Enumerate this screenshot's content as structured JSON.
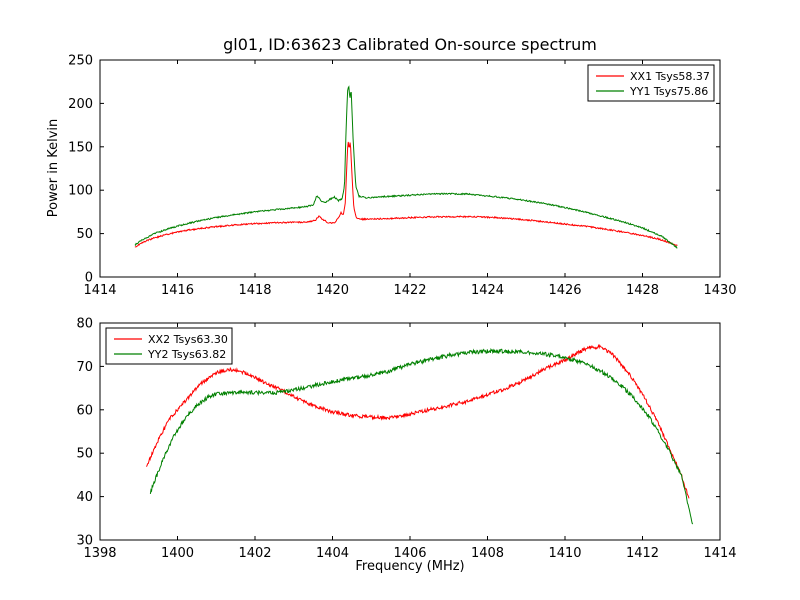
{
  "figure": {
    "title": "gl01, ID:63623 Calibrated On-source spectrum"
  },
  "chart_data": [
    {
      "type": "line",
      "title": "",
      "xlabel": "",
      "ylabel": "Power in Kelvin",
      "xlim": [
        1414,
        1430
      ],
      "ylim": [
        0,
        250
      ],
      "xticks": [
        1414,
        1416,
        1418,
        1420,
        1422,
        1424,
        1426,
        1428,
        1430
      ],
      "yticks": [
        0,
        50,
        100,
        150,
        200,
        250
      ],
      "grid": false,
      "legend_position": "upper right",
      "series": [
        {
          "name": "XX1 Tsys58.37",
          "color": "#ff0000",
          "noise": 0.8,
          "points": [
            [
              1414.9,
              34
            ],
            [
              1415.1,
              40
            ],
            [
              1415.4,
              45
            ],
            [
              1415.8,
              50
            ],
            [
              1416.2,
              53.5
            ],
            [
              1416.6,
              56
            ],
            [
              1417.0,
              58
            ],
            [
              1417.5,
              60
            ],
            [
              1418.0,
              61.5
            ],
            [
              1418.5,
              62.5
            ],
            [
              1419.0,
              63
            ],
            [
              1419.4,
              63.5
            ],
            [
              1419.55,
              65
            ],
            [
              1419.65,
              70
            ],
            [
              1419.75,
              66
            ],
            [
              1419.9,
              62.5
            ],
            [
              1420.05,
              62.5
            ],
            [
              1420.15,
              68
            ],
            [
              1420.22,
              74
            ],
            [
              1420.28,
              71
            ],
            [
              1420.33,
              85
            ],
            [
              1420.37,
              130
            ],
            [
              1420.4,
              158
            ],
            [
              1420.43,
              148
            ],
            [
              1420.46,
              156
            ],
            [
              1420.5,
              120
            ],
            [
              1420.55,
              80
            ],
            [
              1420.62,
              68
            ],
            [
              1420.8,
              66.5
            ],
            [
              1421.2,
              67
            ],
            [
              1421.8,
              68
            ],
            [
              1422.4,
              69
            ],
            [
              1423.0,
              69.5
            ],
            [
              1423.6,
              69.5
            ],
            [
              1424.2,
              68.5
            ],
            [
              1424.8,
              66.5
            ],
            [
              1425.4,
              64
            ],
            [
              1426.0,
              61
            ],
            [
              1426.6,
              58
            ],
            [
              1427.2,
              54
            ],
            [
              1427.8,
              49.5
            ],
            [
              1428.4,
              44
            ],
            [
              1428.9,
              36.5
            ]
          ]
        },
        {
          "name": "YY1 Tsys75.86",
          "color": "#008000",
          "noise": 0.8,
          "points": [
            [
              1414.9,
              37
            ],
            [
              1415.1,
              43
            ],
            [
              1415.4,
              50
            ],
            [
              1415.8,
              56
            ],
            [
              1416.2,
              61
            ],
            [
              1416.6,
              65
            ],
            [
              1417.0,
              68.5
            ],
            [
              1417.5,
              72
            ],
            [
              1418.0,
              75
            ],
            [
              1418.5,
              77.5
            ],
            [
              1419.0,
              79.5
            ],
            [
              1419.3,
              81
            ],
            [
              1419.5,
              83
            ],
            [
              1419.6,
              94
            ],
            [
              1419.7,
              88
            ],
            [
              1419.8,
              85.5
            ],
            [
              1419.95,
              90
            ],
            [
              1420.05,
              92
            ],
            [
              1420.15,
              88
            ],
            [
              1420.25,
              90
            ],
            [
              1420.31,
              105
            ],
            [
              1420.35,
              170
            ],
            [
              1420.39,
              215
            ],
            [
              1420.42,
              220
            ],
            [
              1420.45,
              205
            ],
            [
              1420.48,
              218
            ],
            [
              1420.53,
              160
            ],
            [
              1420.6,
              105
            ],
            [
              1420.68,
              93
            ],
            [
              1420.9,
              91
            ],
            [
              1421.3,
              92.5
            ],
            [
              1421.9,
              94
            ],
            [
              1422.5,
              95.5
            ],
            [
              1423.0,
              96
            ],
            [
              1423.5,
              95.5
            ],
            [
              1424.0,
              93.5
            ],
            [
              1424.5,
              91
            ],
            [
              1425.0,
              88
            ],
            [
              1425.5,
              84.5
            ],
            [
              1426.0,
              80
            ],
            [
              1426.5,
              75
            ],
            [
              1427.0,
              69.5
            ],
            [
              1427.5,
              63.5
            ],
            [
              1428.0,
              56.5
            ],
            [
              1428.5,
              47
            ],
            [
              1428.9,
              33.5
            ]
          ]
        }
      ]
    },
    {
      "type": "line",
      "title": "",
      "xlabel": "Frequency (MHz)",
      "ylabel": "",
      "xlim": [
        1398,
        1414
      ],
      "ylim": [
        30,
        80
      ],
      "xticks": [
        1398,
        1400,
        1402,
        1404,
        1406,
        1408,
        1410,
        1412,
        1414
      ],
      "yticks": [
        30,
        40,
        50,
        60,
        70,
        80
      ],
      "grid": false,
      "legend_position": "upper left",
      "series": [
        {
          "name": "XX2 Tsys63.30",
          "color": "#ff0000",
          "noise": 0.4,
          "points": [
            [
              1399.2,
              47
            ],
            [
              1399.5,
              53
            ],
            [
              1399.8,
              58
            ],
            [
              1400.2,
              62
            ],
            [
              1400.6,
              66
            ],
            [
              1401.0,
              68.5
            ],
            [
              1401.3,
              69.3
            ],
            [
              1401.6,
              69
            ],
            [
              1402.0,
              67.5
            ],
            [
              1402.3,
              66
            ],
            [
              1402.7,
              64.5
            ],
            [
              1403.0,
              63
            ],
            [
              1403.5,
              61
            ],
            [
              1404.0,
              59.5
            ],
            [
              1404.5,
              58.7
            ],
            [
              1405.0,
              58.3
            ],
            [
              1405.5,
              58.2
            ],
            [
              1406.0,
              59
            ],
            [
              1406.5,
              60
            ],
            [
              1407.0,
              61
            ],
            [
              1407.5,
              62
            ],
            [
              1408.0,
              63.5
            ],
            [
              1408.5,
              65
            ],
            [
              1409.0,
              67
            ],
            [
              1409.5,
              69.5
            ],
            [
              1410.0,
              71.5
            ],
            [
              1410.3,
              73
            ],
            [
              1410.6,
              74.3
            ],
            [
              1410.9,
              74.5
            ],
            [
              1411.2,
              73
            ],
            [
              1411.5,
              70
            ],
            [
              1411.8,
              66.5
            ],
            [
              1412.1,
              62
            ],
            [
              1412.4,
              57
            ],
            [
              1412.7,
              51
            ],
            [
              1413.0,
              45
            ],
            [
              1413.2,
              39.5
            ]
          ]
        },
        {
          "name": "YY2 Tsys63.82",
          "color": "#008000",
          "noise": 0.45,
          "points": [
            [
              1399.3,
              41
            ],
            [
              1399.6,
              48
            ],
            [
              1399.9,
              54
            ],
            [
              1400.2,
              58
            ],
            [
              1400.5,
              61
            ],
            [
              1400.8,
              63
            ],
            [
              1401.1,
              63.8
            ],
            [
              1401.5,
              64
            ],
            [
              1402.0,
              64
            ],
            [
              1402.3,
              63.8
            ],
            [
              1402.6,
              64
            ],
            [
              1403.0,
              64.5
            ],
            [
              1403.5,
              65.5
            ],
            [
              1404.0,
              66.5
            ],
            [
              1404.5,
              67.2
            ],
            [
              1405.0,
              68
            ],
            [
              1405.5,
              69
            ],
            [
              1406.0,
              70.5
            ],
            [
              1406.5,
              71.5
            ],
            [
              1407.0,
              72.5
            ],
            [
              1407.5,
              73.2
            ],
            [
              1408.0,
              73.5
            ],
            [
              1408.5,
              73.5
            ],
            [
              1409.0,
              73.2
            ],
            [
              1409.5,
              72.8
            ],
            [
              1410.0,
              72
            ],
            [
              1410.3,
              71.3
            ],
            [
              1410.7,
              70
            ],
            [
              1411.0,
              68.5
            ],
            [
              1411.4,
              66
            ],
            [
              1411.8,
              62.5
            ],
            [
              1412.2,
              58
            ],
            [
              1412.6,
              52
            ],
            [
              1413.0,
              45
            ],
            [
              1413.3,
              33.5
            ]
          ]
        }
      ]
    }
  ]
}
